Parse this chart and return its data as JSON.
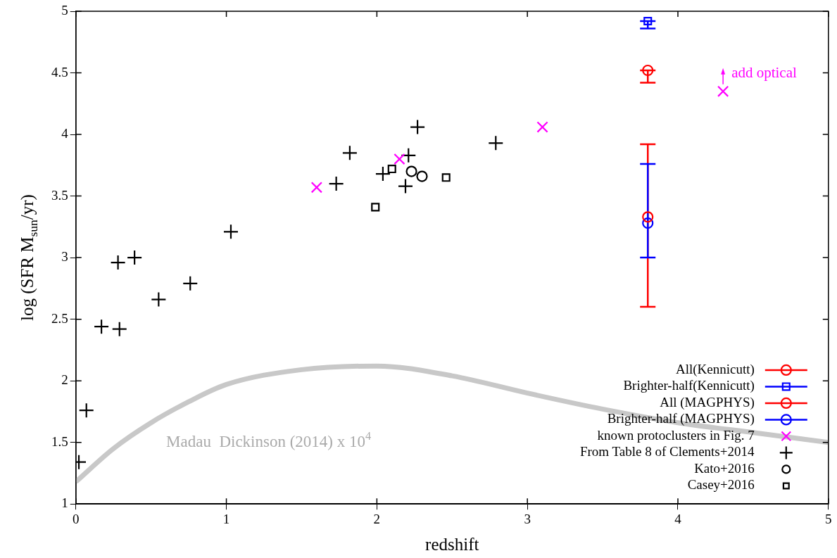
{
  "chart_data": {
    "type": "scatter",
    "xlabel": "redshift",
    "ylabel": "log (SFR M$_{sun}$/yr)",
    "xlim": [
      0,
      5
    ],
    "xticks": [
      0,
      1,
      2,
      3,
      4,
      5
    ],
    "ylim": [
      1,
      5
    ],
    "yticks": [
      1,
      1.5,
      2,
      2.5,
      3,
      3.5,
      4,
      4.5,
      5
    ],
    "grid": false,
    "legend": "bottom right",
    "series": [
      {
        "name": "All(Kennicutt)",
        "color": "#ff0000",
        "marker": "circle",
        "x": [
          3.8
        ],
        "values": [
          4.52
        ],
        "errors": [
          [
            4.42,
            4.52
          ]
        ]
      },
      {
        "name": "Brighter-half(Kennicutt)",
        "color": "#0000ff",
        "marker": "square",
        "x": [
          3.8
        ],
        "values": [
          4.92
        ],
        "errors": [
          [
            4.86,
            4.92
          ]
        ]
      },
      {
        "name": "All (MAGPHYS)",
        "color": "#ff0000",
        "marker": "circle",
        "x": [
          3.8
        ],
        "values": [
          3.33
        ],
        "errors": [
          [
            2.6,
            3.92
          ]
        ]
      },
      {
        "name": "Brighter-half (MAGPHYS)",
        "color": "#0000ff",
        "marker": "circle",
        "x": [
          3.8
        ],
        "values": [
          3.28
        ],
        "errors": [
          [
            3.0,
            3.76
          ]
        ]
      },
      {
        "name": "known protoclusters in Fig. 7",
        "color": "#ff00ff",
        "marker": "x",
        "x": [
          1.6,
          2.15,
          3.1,
          4.3
        ],
        "values": [
          3.57,
          3.8,
          4.06,
          4.35
        ]
      },
      {
        "name": "From Table 8 of Clements+2014",
        "color": "#000000",
        "marker": "cross",
        "x": [
          0.02,
          0.07,
          0.17,
          0.29,
          0.28,
          0.39,
          0.55,
          0.76,
          1.03,
          1.73,
          1.82,
          2.04,
          2.21,
          2.19,
          2.27,
          2.79
        ],
        "values": [
          1.34,
          1.76,
          2.44,
          2.42,
          2.96,
          3.0,
          2.66,
          2.79,
          3.21,
          3.6,
          3.85,
          3.68,
          3.83,
          3.58,
          4.06,
          3.93
        ]
      },
      {
        "name": "Kato+2016",
        "color": "#000000",
        "marker": "circle",
        "x": [
          2.23,
          2.3
        ],
        "values": [
          3.7,
          3.66
        ]
      },
      {
        "name": "Casey+2016",
        "color": "#000000",
        "marker": "square",
        "x": [
          1.99,
          2.1,
          2.46
        ],
        "values": [
          3.41,
          3.72,
          3.65
        ]
      },
      {
        "type": "line",
        "name": "Madau  Dickinson (2014) x 10$^{4}$",
        "color": "#c8c8c8",
        "line_style": "solid",
        "marker": "none",
        "x": [
          0,
          0.25,
          0.5,
          0.75,
          1,
          1.5,
          2,
          2.5,
          3,
          3.5,
          4,
          4.5,
          5
        ],
        "values": [
          1.18,
          1.45,
          1.66,
          1.83,
          1.97,
          2.09,
          2.12,
          2.04,
          1.9,
          1.77,
          1.66,
          1.58,
          1.5
        ]
      }
    ],
    "annotations": [
      {
        "text": "add optical",
        "x": 4.3,
        "y": 4.35
      }
    ]
  }
}
